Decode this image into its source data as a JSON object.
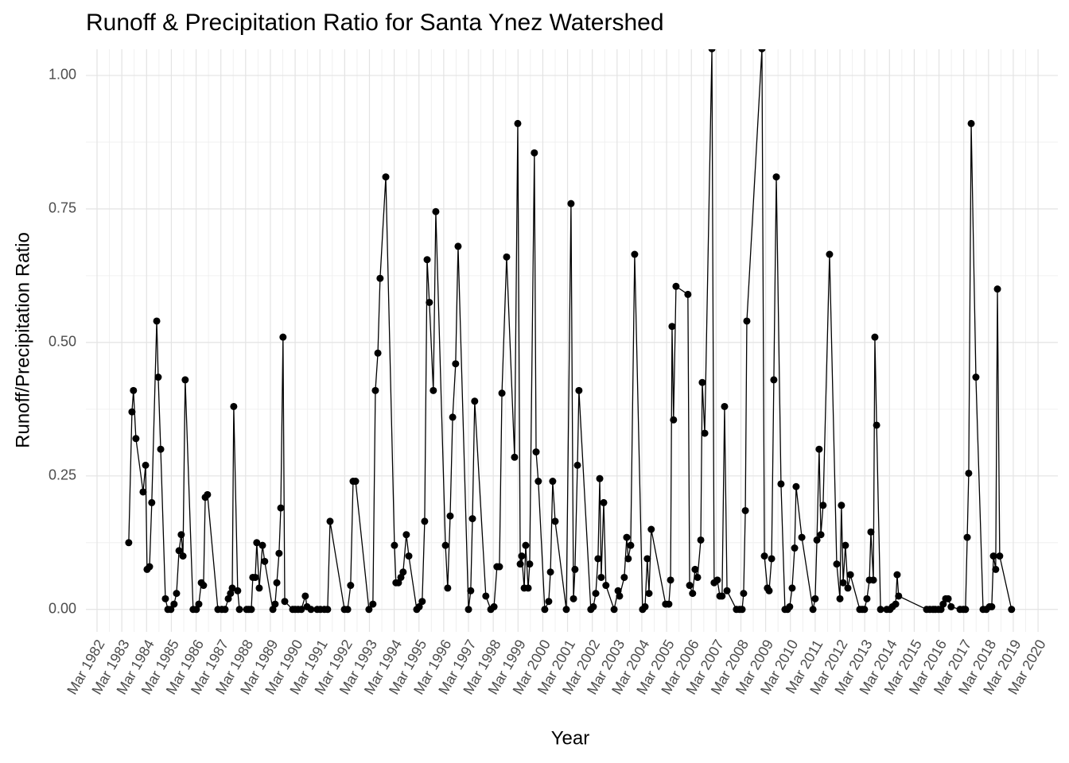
{
  "chart_data": {
    "type": "line",
    "title": "Runoff & Precipitation Ratio for Santa Ynez Watershed",
    "x_label": "Year",
    "y_label": "Runoff/Precipitation Ratio",
    "x": [
      1983.45,
      1983.58,
      1983.64,
      1983.74,
      1984.03,
      1984.13,
      1984.19,
      1984.29,
      1984.38,
      1984.58,
      1984.64,
      1984.74,
      1984.93,
      1985.03,
      1985.15,
      1985.28,
      1985.38,
      1985.48,
      1985.57,
      1985.64,
      1985.73,
      1986.05,
      1986.18,
      1986.28,
      1986.38,
      1986.47,
      1986.54,
      1986.63,
      1987.05,
      1987.21,
      1987.34,
      1987.47,
      1987.56,
      1987.63,
      1987.69,
      1987.85,
      1987.92,
      1988.21,
      1988.3,
      1988.4,
      1988.46,
      1988.56,
      1988.62,
      1988.72,
      1988.85,
      1988.94,
      1989.27,
      1989.36,
      1989.43,
      1989.52,
      1989.59,
      1989.68,
      1989.75,
      1990.07,
      1990.17,
      1990.29,
      1990.42,
      1990.58,
      1990.65,
      1990.81,
      1991.06,
      1991.19,
      1991.35,
      1991.48,
      1991.58,
      1992.16,
      1992.29,
      1992.41,
      1992.51,
      1992.61,
      1993.15,
      1993.31,
      1993.41,
      1993.51,
      1993.6,
      1993.83,
      1994.18,
      1994.24,
      1994.34,
      1994.44,
      1994.53,
      1994.66,
      1994.76,
      1995.08,
      1995.18,
      1995.3,
      1995.4,
      1995.5,
      1995.59,
      1995.75,
      1995.85,
      1996.24,
      1996.33,
      1996.43,
      1996.53,
      1996.65,
      1996.75,
      1997.17,
      1997.26,
      1997.33,
      1997.42,
      1997.87,
      1998.07,
      1998.2,
      1998.32,
      1998.42,
      1998.52,
      1998.71,
      1999.03,
      1999.16,
      1999.26,
      1999.32,
      1999.42,
      1999.48,
      1999.58,
      1999.64,
      1999.83,
      1999.9,
      1999.99,
      2000.25,
      2000.41,
      2000.48,
      2000.57,
      2000.67,
      2001.12,
      2001.31,
      2001.41,
      2001.47,
      2001.57,
      2001.63,
      2002.11,
      2002.21,
      2002.31,
      2002.4,
      2002.47,
      2002.53,
      2002.63,
      2002.72,
      2003.05,
      2003.21,
      2003.27,
      2003.46,
      2003.56,
      2003.62,
      2003.72,
      2003.88,
      2004.2,
      2004.3,
      2004.39,
      2004.46,
      2004.55,
      2005.13,
      2005.26,
      2005.33,
      2005.39,
      2005.45,
      2005.55,
      2006.03,
      2006.1,
      2006.22,
      2006.32,
      2006.42,
      2006.55,
      2006.61,
      2006.71,
      2007.0,
      2007.09,
      2007.22,
      2007.32,
      2007.41,
      2007.51,
      2007.61,
      2007.99,
      2008.12,
      2008.22,
      2008.28,
      2008.35,
      2008.41,
      2009.02,
      2009.12,
      2009.24,
      2009.31,
      2009.41,
      2009.5,
      2009.6,
      2009.79,
      2009.95,
      2010.05,
      2010.14,
      2010.24,
      2010.34,
      2010.4,
      2010.63,
      2011.08,
      2011.17,
      2011.24,
      2011.33,
      2011.4,
      2011.49,
      2011.75,
      2012.04,
      2012.17,
      2012.23,
      2012.3,
      2012.39,
      2012.49,
      2012.59,
      2012.97,
      2013.07,
      2013.16,
      2013.26,
      2013.36,
      2013.42,
      2013.52,
      2013.58,
      2013.65,
      2013.81,
      2014.06,
      2014.19,
      2014.29,
      2014.42,
      2014.48,
      2014.54,
      2015.67,
      2015.8,
      2015.93,
      2016.02,
      2016.15,
      2016.25,
      2016.34,
      2016.44,
      2016.54,
      2016.66,
      2017.02,
      2017.15,
      2017.24,
      2017.31,
      2017.37,
      2017.47,
      2017.66,
      2017.95,
      2018.08,
      2018.21,
      2018.3,
      2018.37,
      2018.46,
      2018.53,
      2018.62,
      2019.1
    ],
    "series": [
      {
        "color": "#000000",
        "values": [
          0.125,
          0.37,
          0.41,
          0.32,
          0.22,
          0.27,
          0.075,
          0.08,
          0.2,
          0.54,
          0.435,
          0.3,
          0.02,
          0,
          0,
          0.01,
          0.03,
          0.11,
          0.14,
          0.1,
          0.43,
          0,
          0,
          0.01,
          0.05,
          0.045,
          0.21,
          0.215,
          0,
          0,
          0,
          0.02,
          0.03,
          0.04,
          0.38,
          0.035,
          0,
          0,
          0,
          0,
          0.06,
          0.06,
          0.125,
          0.04,
          0.12,
          0.09,
          0,
          0.01,
          0.05,
          0.105,
          0.19,
          0.51,
          0.015,
          0,
          0,
          0,
          0,
          0.025,
          0.005,
          0,
          0,
          0,
          0,
          0,
          0.165,
          0,
          0,
          0.045,
          0.24,
          0.24,
          0,
          0.01,
          0.41,
          0.48,
          0.62,
          0.81,
          0.12,
          0.05,
          0.05,
          0.06,
          0.07,
          0.14,
          0.1,
          0,
          0.005,
          0.015,
          0.165,
          0.655,
          0.575,
          0.41,
          0.745,
          0.12,
          0.04,
          0.175,
          0.36,
          0.46,
          0.68,
          0,
          0.035,
          0.17,
          0.39,
          0.025,
          0,
          0.005,
          0.08,
          0.08,
          0.405,
          0.66,
          0.285,
          0.91,
          0.085,
          0.1,
          0.04,
          0.12,
          0.04,
          0.085,
          0.855,
          0.295,
          0.24,
          0,
          0.015,
          0.07,
          0.24,
          0.165,
          0,
          0.76,
          0.02,
          0.075,
          0.27,
          0.41,
          0,
          0.005,
          0.03,
          0.095,
          0.245,
          0.06,
          0.2,
          0.045,
          0,
          0.035,
          0.025,
          0.06,
          0.135,
          0.095,
          0.12,
          0.665,
          0,
          0.005,
          0.095,
          0.03,
          0.15,
          0.01,
          0.01,
          0.055,
          0.53,
          0.355,
          0.605,
          0.59,
          0.045,
          0.03,
          0.075,
          0.06,
          0.13,
          0.425,
          0.33,
          1.05,
          0.05,
          0.055,
          0.025,
          0.025,
          0.38,
          0.035,
          0,
          0,
          0,
          0.03,
          0.185,
          0.54,
          1.05,
          0.1,
          0.04,
          0.035,
          0.095,
          0.43,
          0.81,
          0.235,
          0,
          0,
          0.005,
          0.04,
          0.115,
          0.23,
          0.135,
          0,
          0.02,
          0.13,
          0.3,
          0.14,
          0.195,
          0.665,
          0.085,
          0.02,
          0.195,
          0.05,
          0.12,
          0.04,
          0.065,
          0,
          0,
          0,
          0.02,
          0.055,
          0.145,
          0.055,
          0.51,
          0.345,
          0,
          0,
          0,
          0.005,
          0.01,
          0.065,
          0.025,
          0,
          0,
          0,
          0,
          0,
          0,
          0.01,
          0.02,
          0.02,
          0.005,
          0,
          0,
          0,
          0.135,
          0.255,
          0.91,
          0.435,
          0,
          0,
          0.005,
          0.005,
          0.1,
          0.075,
          0.6,
          0.1,
          0
        ]
      }
    ],
    "xlim": [
      1981.72,
      2020.97
    ],
    "ylim": [
      -0.042,
      1.049
    ],
    "xticks": [
      {
        "value": 1982.17,
        "label": "Mar 1982"
      },
      {
        "value": 1983.17,
        "label": "Mar 1983"
      },
      {
        "value": 1984.17,
        "label": "Mar 1984"
      },
      {
        "value": 1985.17,
        "label": "Mar 1985"
      },
      {
        "value": 1986.17,
        "label": "Mar 1986"
      },
      {
        "value": 1987.17,
        "label": "Mar 1987"
      },
      {
        "value": 1988.17,
        "label": "Mar 1988"
      },
      {
        "value": 1989.17,
        "label": "Mar 1989"
      },
      {
        "value": 1990.17,
        "label": "Mar 1990"
      },
      {
        "value": 1991.17,
        "label": "Mar 1991"
      },
      {
        "value": 1992.17,
        "label": "Mar 1992"
      },
      {
        "value": 1993.17,
        "label": "Mar 1993"
      },
      {
        "value": 1994.17,
        "label": "Mar 1994"
      },
      {
        "value": 1995.17,
        "label": "Mar 1995"
      },
      {
        "value": 1996.17,
        "label": "Mar 1996"
      },
      {
        "value": 1997.17,
        "label": "Mar 1997"
      },
      {
        "value": 1998.17,
        "label": "Mar 1998"
      },
      {
        "value": 1999.17,
        "label": "Mar 1999"
      },
      {
        "value": 2000.17,
        "label": "Mar 2000"
      },
      {
        "value": 2001.17,
        "label": "Mar 2001"
      },
      {
        "value": 2002.17,
        "label": "Mar 2002"
      },
      {
        "value": 2003.17,
        "label": "Mar 2003"
      },
      {
        "value": 2004.17,
        "label": "Mar 2004"
      },
      {
        "value": 2005.17,
        "label": "Mar 2005"
      },
      {
        "value": 2006.17,
        "label": "Mar 2006"
      },
      {
        "value": 2007.17,
        "label": "Mar 2007"
      },
      {
        "value": 2008.17,
        "label": "Mar 2008"
      },
      {
        "value": 2009.17,
        "label": "Mar 2009"
      },
      {
        "value": 2010.17,
        "label": "Mar 2010"
      },
      {
        "value": 2011.17,
        "label": "Mar 2011"
      },
      {
        "value": 2012.17,
        "label": "Mar 2012"
      },
      {
        "value": 2013.17,
        "label": "Mar 2013"
      },
      {
        "value": 2014.17,
        "label": "Mar 2014"
      },
      {
        "value": 2015.17,
        "label": "Mar 2015"
      },
      {
        "value": 2016.17,
        "label": "Mar 2016"
      },
      {
        "value": 2017.17,
        "label": "Mar 2017"
      },
      {
        "value": 2018.17,
        "label": "Mar 2018"
      },
      {
        "value": 2019.17,
        "label": "Mar 2019"
      },
      {
        "value": 2020.17,
        "label": "Mar 2020"
      }
    ],
    "yticks": [
      {
        "value": 0,
        "label": "0.00"
      },
      {
        "value": 0.25,
        "label": "0.25"
      },
      {
        "value": 0.5,
        "label": "0.50"
      },
      {
        "value": 0.75,
        "label": "0.75"
      },
      {
        "value": 1,
        "label": "1.00"
      }
    ],
    "grid": true,
    "markers": true
  }
}
